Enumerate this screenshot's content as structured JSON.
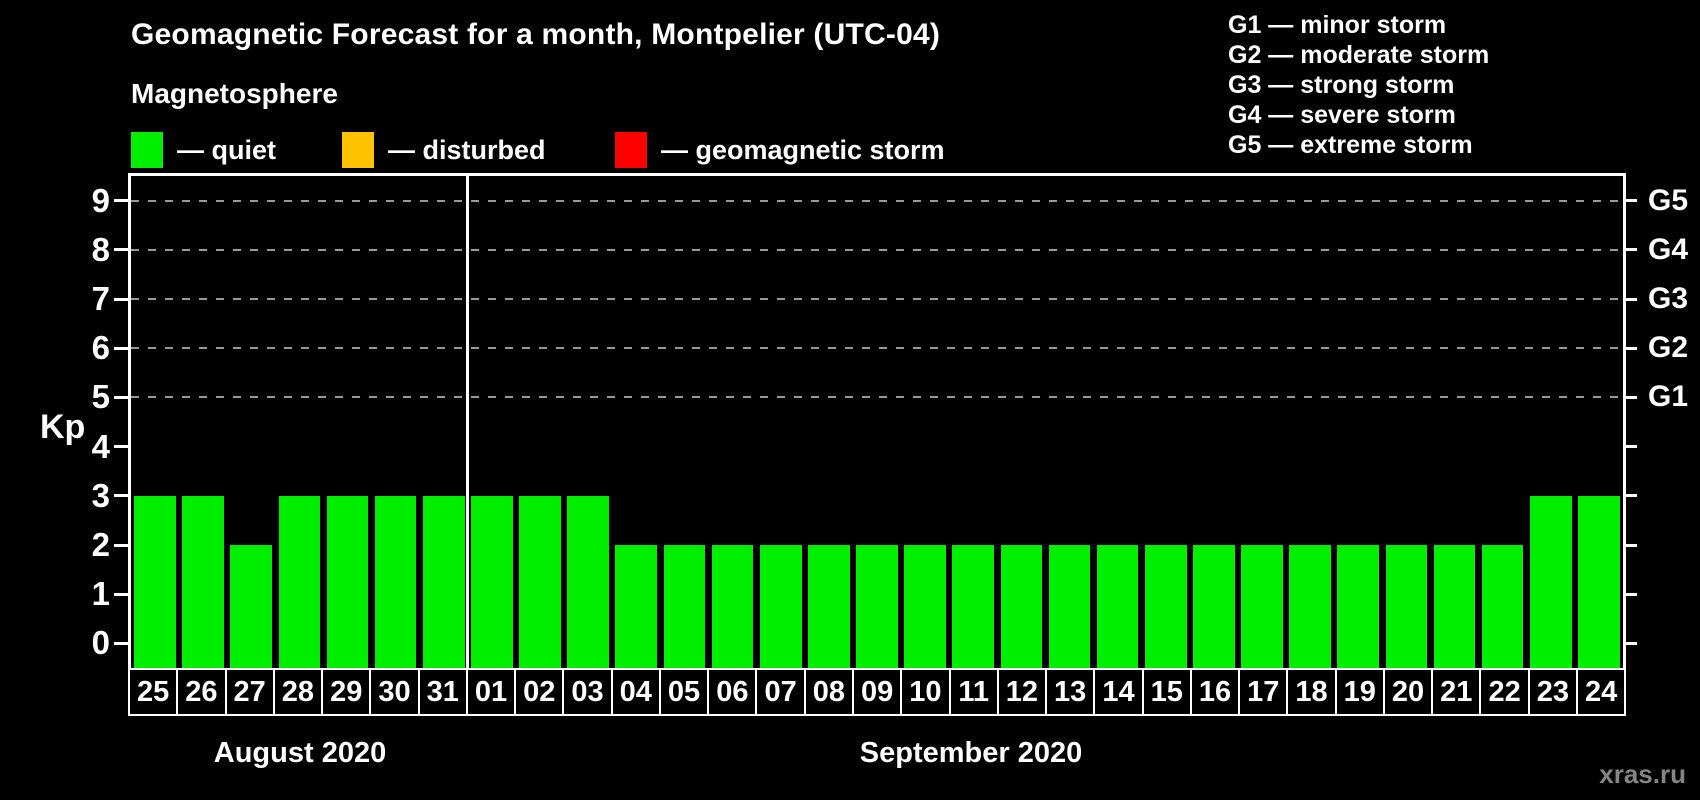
{
  "header": {
    "title": "Geomagnetic Forecast for a month, Montpelier (UTC-04)",
    "subtitle": "Magnetosphere"
  },
  "legend": {
    "items": [
      {
        "name": "quiet",
        "label": "— quiet",
        "color": "#00ee00"
      },
      {
        "name": "disturbed",
        "label": "— disturbed",
        "color": "#ffc200"
      },
      {
        "name": "geomagnetic-storm",
        "label": "— geomagnetic storm",
        "color": "#ff0000"
      }
    ]
  },
  "storm_scale_legend": {
    "lines": [
      "G1 — minor storm",
      "G2 — moderate storm",
      "G3 — strong storm",
      "G4 — severe storm",
      "G5 — extreme storm"
    ]
  },
  "watermark": "xras.ru",
  "colors": {
    "background": "#000000",
    "text": "#ffffff",
    "axis": "#ffffff",
    "gridline": "#999999",
    "watermark": "#858585"
  },
  "chart_data": {
    "type": "bar",
    "title": "Geomagnetic Forecast for a month, Montpelier (UTC-04)",
    "xlabel": "",
    "ylabel": "Kp",
    "ylim": [
      -0.5,
      9.5
    ],
    "y_ticks": [
      0,
      1,
      2,
      3,
      4,
      5,
      6,
      7,
      8,
      9
    ],
    "gridlines_at_kp": [
      5,
      6,
      7,
      8,
      9
    ],
    "grid": "dashed horizontal lines at storm levels only",
    "legend_position": "top-left",
    "right_axis_labels": [
      {
        "kp": 5,
        "label": "G1"
      },
      {
        "kp": 6,
        "label": "G2"
      },
      {
        "kp": 7,
        "label": "G3"
      },
      {
        "kp": 8,
        "label": "G4"
      },
      {
        "kp": 9,
        "label": "G5"
      }
    ],
    "bar_status_colors": {
      "quiet": "#00ee00",
      "disturbed": "#ffc200",
      "storm": "#ff0000"
    },
    "status_all": "quiet",
    "months": [
      {
        "label": "August 2020",
        "days": [
          "25",
          "26",
          "27",
          "28",
          "29",
          "30",
          "31"
        ],
        "kp": [
          3,
          3,
          2,
          3,
          3,
          3,
          3
        ]
      },
      {
        "label": "September 2020",
        "days": [
          "01",
          "02",
          "03",
          "04",
          "05",
          "06",
          "07",
          "08",
          "09",
          "10",
          "11",
          "12",
          "13",
          "14",
          "15",
          "16",
          "17",
          "18",
          "19",
          "20",
          "21",
          "22",
          "23",
          "24"
        ],
        "kp": [
          3,
          3,
          3,
          2,
          2,
          2,
          2,
          2,
          2,
          2,
          2,
          2,
          2,
          2,
          2,
          2,
          2,
          2,
          2,
          2,
          2,
          2,
          3,
          3
        ]
      }
    ]
  }
}
